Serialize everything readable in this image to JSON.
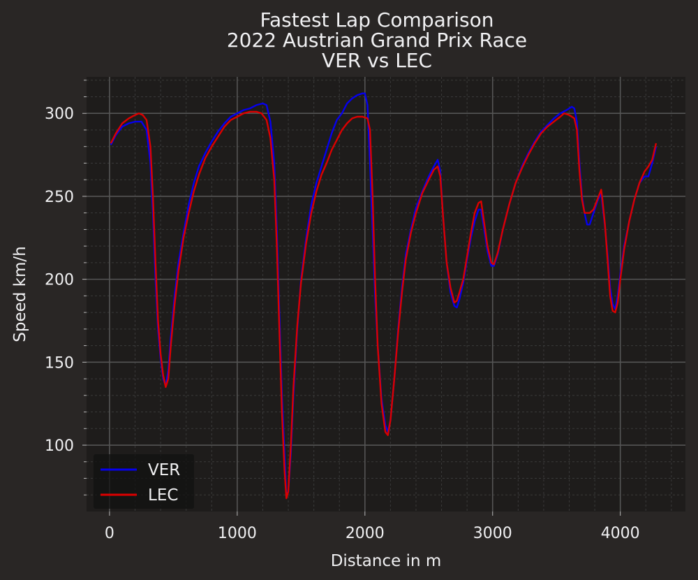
{
  "chart_data": {
    "type": "line",
    "title": [
      "Fastest Lap Comparison",
      "2022 Austrian Grand Prix Race",
      "VER vs LEC"
    ],
    "xlabel": "Distance in m",
    "ylabel": "Speed km/h",
    "xlim": [
      -180,
      4510
    ],
    "ylim": [
      60,
      322
    ],
    "x_ticks": [
      0,
      1000,
      2000,
      3000,
      4000
    ],
    "y_ticks": [
      100,
      150,
      200,
      250,
      300
    ],
    "grid": true,
    "legend_position": "lower-left",
    "colors": {
      "figure_background": "#292625",
      "axes_background": "#1e1c1b",
      "major_grid": "#555555",
      "minor_grid": "#3a3a3a",
      "text": "#f1f1f3"
    },
    "series": [
      {
        "name": "VER",
        "color": "#0600ef",
        "points": [
          [
            10,
            281
          ],
          [
            50,
            287
          ],
          [
            100,
            292
          ],
          [
            150,
            294
          ],
          [
            200,
            295
          ],
          [
            250,
            295
          ],
          [
            290,
            290
          ],
          [
            320,
            270
          ],
          [
            340,
            240
          ],
          [
            360,
            200
          ],
          [
            380,
            170
          ],
          [
            400,
            152
          ],
          [
            420,
            140
          ],
          [
            440,
            136
          ],
          [
            460,
            145
          ],
          [
            480,
            165
          ],
          [
            510,
            190
          ],
          [
            540,
            210
          ],
          [
            580,
            228
          ],
          [
            620,
            245
          ],
          [
            660,
            258
          ],
          [
            700,
            268
          ],
          [
            750,
            276
          ],
          [
            800,
            283
          ],
          [
            850,
            289
          ],
          [
            900,
            294
          ],
          [
            950,
            298
          ],
          [
            1000,
            300
          ],
          [
            1050,
            302
          ],
          [
            1100,
            303
          ],
          [
            1150,
            305
          ],
          [
            1200,
            306
          ],
          [
            1230,
            305
          ],
          [
            1260,
            295
          ],
          [
            1290,
            270
          ],
          [
            1310,
            230
          ],
          [
            1330,
            180
          ],
          [
            1350,
            130
          ],
          [
            1370,
            95
          ],
          [
            1385,
            70
          ],
          [
            1400,
            72
          ],
          [
            1420,
            95
          ],
          [
            1440,
            130
          ],
          [
            1470,
            170
          ],
          [
            1500,
            200
          ],
          [
            1540,
            225
          ],
          [
            1580,
            245
          ],
          [
            1620,
            258
          ],
          [
            1660,
            268
          ],
          [
            1700,
            278
          ],
          [
            1740,
            288
          ],
          [
            1780,
            296
          ],
          [
            1820,
            300
          ],
          [
            1860,
            306
          ],
          [
            1900,
            309
          ],
          [
            1940,
            311
          ],
          [
            1980,
            312
          ],
          [
            2000,
            312
          ],
          [
            2020,
            305
          ],
          [
            2040,
            270
          ],
          [
            2060,
            230
          ],
          [
            2080,
            190
          ],
          [
            2100,
            160
          ],
          [
            2130,
            128
          ],
          [
            2160,
            112
          ],
          [
            2180,
            108
          ],
          [
            2200,
            115
          ],
          [
            2230,
            140
          ],
          [
            2260,
            170
          ],
          [
            2290,
            195
          ],
          [
            2320,
            215
          ],
          [
            2360,
            230
          ],
          [
            2400,
            243
          ],
          [
            2450,
            253
          ],
          [
            2500,
            262
          ],
          [
            2540,
            268
          ],
          [
            2570,
            272
          ],
          [
            2590,
            265
          ],
          [
            2610,
            240
          ],
          [
            2640,
            210
          ],
          [
            2670,
            192
          ],
          [
            2700,
            184
          ],
          [
            2720,
            183
          ],
          [
            2740,
            188
          ],
          [
            2770,
            198
          ],
          [
            2800,
            212
          ],
          [
            2830,
            225
          ],
          [
            2860,
            235
          ],
          [
            2890,
            242
          ],
          [
            2910,
            242
          ],
          [
            2930,
            232
          ],
          [
            2960,
            217
          ],
          [
            2990,
            208
          ],
          [
            3010,
            208
          ],
          [
            3040,
            215
          ],
          [
            3080,
            230
          ],
          [
            3130,
            245
          ],
          [
            3180,
            258
          ],
          [
            3230,
            268
          ],
          [
            3280,
            276
          ],
          [
            3330,
            283
          ],
          [
            3380,
            289
          ],
          [
            3430,
            293
          ],
          [
            3480,
            297
          ],
          [
            3530,
            300
          ],
          [
            3580,
            302
          ],
          [
            3620,
            304
          ],
          [
            3640,
            303
          ],
          [
            3660,
            295
          ],
          [
            3680,
            270
          ],
          [
            3700,
            250
          ],
          [
            3720,
            240
          ],
          [
            3740,
            233
          ],
          [
            3760,
            233
          ],
          [
            3790,
            240
          ],
          [
            3820,
            247
          ],
          [
            3850,
            252
          ],
          [
            3860,
            245
          ],
          [
            3880,
            232
          ],
          [
            3900,
            215
          ],
          [
            3920,
            195
          ],
          [
            3940,
            185
          ],
          [
            3960,
            182
          ],
          [
            3980,
            190
          ],
          [
            4000,
            203
          ],
          [
            4030,
            220
          ],
          [
            4070,
            235
          ],
          [
            4110,
            248
          ],
          [
            4150,
            258
          ],
          [
            4190,
            262
          ],
          [
            4220,
            262
          ],
          [
            4250,
            270
          ],
          [
            4280,
            280
          ]
        ]
      },
      {
        "name": "LEC",
        "color": "#dc0000",
        "points": [
          [
            10,
            282
          ],
          [
            50,
            288
          ],
          [
            100,
            294
          ],
          [
            150,
            297
          ],
          [
            200,
            299
          ],
          [
            230,
            300
          ],
          [
            260,
            299
          ],
          [
            290,
            296
          ],
          [
            320,
            280
          ],
          [
            340,
            250
          ],
          [
            360,
            210
          ],
          [
            380,
            175
          ],
          [
            400,
            155
          ],
          [
            420,
            142
          ],
          [
            440,
            135
          ],
          [
            460,
            140
          ],
          [
            480,
            160
          ],
          [
            510,
            185
          ],
          [
            540,
            205
          ],
          [
            580,
            225
          ],
          [
            620,
            240
          ],
          [
            660,
            253
          ],
          [
            700,
            263
          ],
          [
            750,
            273
          ],
          [
            800,
            280
          ],
          [
            850,
            286
          ],
          [
            900,
            292
          ],
          [
            950,
            296
          ],
          [
            1000,
            298
          ],
          [
            1050,
            300
          ],
          [
            1100,
            301
          ],
          [
            1150,
            301
          ],
          [
            1190,
            300
          ],
          [
            1230,
            296
          ],
          [
            1260,
            285
          ],
          [
            1290,
            260
          ],
          [
            1310,
            220
          ],
          [
            1330,
            170
          ],
          [
            1350,
            120
          ],
          [
            1370,
            85
          ],
          [
            1385,
            68
          ],
          [
            1400,
            72
          ],
          [
            1420,
            100
          ],
          [
            1440,
            135
          ],
          [
            1470,
            172
          ],
          [
            1500,
            198
          ],
          [
            1540,
            222
          ],
          [
            1580,
            240
          ],
          [
            1620,
            253
          ],
          [
            1660,
            263
          ],
          [
            1700,
            270
          ],
          [
            1740,
            278
          ],
          [
            1780,
            284
          ],
          [
            1820,
            290
          ],
          [
            1860,
            294
          ],
          [
            1900,
            297
          ],
          [
            1940,
            298
          ],
          [
            1980,
            298
          ],
          [
            2020,
            297
          ],
          [
            2040,
            290
          ],
          [
            2060,
            250
          ],
          [
            2080,
            200
          ],
          [
            2100,
            160
          ],
          [
            2130,
            125
          ],
          [
            2160,
            108
          ],
          [
            2180,
            106
          ],
          [
            2200,
            115
          ],
          [
            2230,
            140
          ],
          [
            2260,
            168
          ],
          [
            2290,
            192
          ],
          [
            2320,
            212
          ],
          [
            2360,
            228
          ],
          [
            2400,
            240
          ],
          [
            2450,
            252
          ],
          [
            2500,
            260
          ],
          [
            2540,
            266
          ],
          [
            2570,
            268
          ],
          [
            2590,
            262
          ],
          [
            2610,
            240
          ],
          [
            2640,
            210
          ],
          [
            2670,
            195
          ],
          [
            2700,
            186
          ],
          [
            2720,
            187
          ],
          [
            2740,
            192
          ],
          [
            2770,
            200
          ],
          [
            2800,
            214
          ],
          [
            2830,
            228
          ],
          [
            2860,
            240
          ],
          [
            2890,
            246
          ],
          [
            2910,
            247
          ],
          [
            2930,
            236
          ],
          [
            2960,
            220
          ],
          [
            2990,
            210
          ],
          [
            3010,
            209
          ],
          [
            3040,
            216
          ],
          [
            3080,
            230
          ],
          [
            3130,
            245
          ],
          [
            3180,
            258
          ],
          [
            3230,
            267
          ],
          [
            3280,
            275
          ],
          [
            3330,
            282
          ],
          [
            3380,
            288
          ],
          [
            3430,
            292
          ],
          [
            3480,
            295
          ],
          [
            3530,
            298
          ],
          [
            3560,
            300
          ],
          [
            3600,
            299
          ],
          [
            3640,
            297
          ],
          [
            3660,
            290
          ],
          [
            3680,
            265
          ],
          [
            3700,
            248
          ],
          [
            3720,
            240
          ],
          [
            3760,
            240
          ],
          [
            3790,
            242
          ],
          [
            3820,
            248
          ],
          [
            3850,
            254
          ],
          [
            3860,
            248
          ],
          [
            3880,
            233
          ],
          [
            3900,
            212
          ],
          [
            3920,
            190
          ],
          [
            3940,
            181
          ],
          [
            3960,
            180
          ],
          [
            3980,
            186
          ],
          [
            4000,
            200
          ],
          [
            4030,
            218
          ],
          [
            4070,
            235
          ],
          [
            4110,
            248
          ],
          [
            4150,
            258
          ],
          [
            4190,
            265
          ],
          [
            4220,
            268
          ],
          [
            4250,
            272
          ],
          [
            4280,
            282
          ]
        ]
      }
    ]
  }
}
